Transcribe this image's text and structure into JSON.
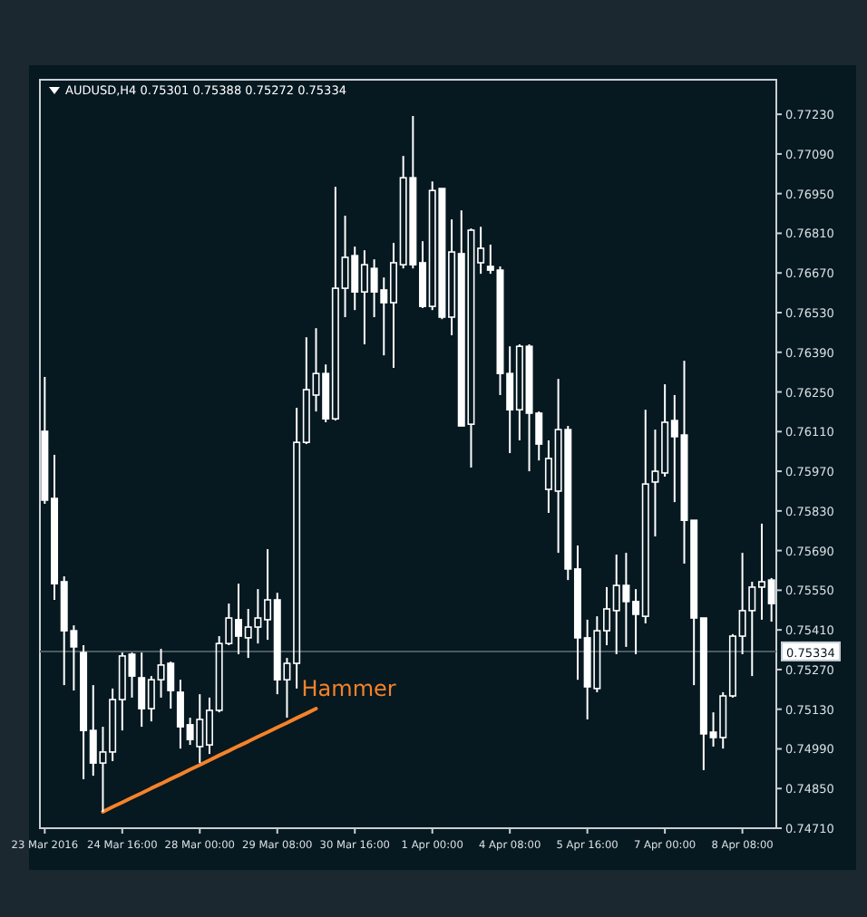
{
  "chart_data": {
    "type": "candlestick",
    "title": "AUDUSD,H4 0.75301 0.75388 0.75272 0.75334",
    "categories": [
      "23 Mar 2016",
      null,
      null,
      null,
      null,
      null,
      null,
      null,
      "24 Mar 16:00",
      null,
      null,
      null,
      null,
      null,
      null,
      null,
      "28 Mar 00:00",
      null,
      null,
      null,
      null,
      null,
      null,
      null,
      "29 Mar 08:00",
      null,
      null,
      null,
      null,
      null,
      null,
      null,
      "30 Mar 16:00",
      null,
      null,
      null,
      null,
      null,
      null,
      null,
      "1 Apr 00:00",
      null,
      null,
      null,
      null,
      null,
      null,
      null,
      "4 Apr 08:00",
      null,
      null,
      null,
      null,
      null,
      null,
      null,
      "5 Apr 16:00",
      null,
      null,
      null,
      null,
      null,
      null,
      null,
      "7 Apr 00:00",
      null,
      null,
      null,
      null,
      null,
      null,
      null,
      "8 Apr 08:00",
      null,
      null,
      null
    ],
    "ohlc": [
      [
        0.76111,
        0.76303,
        0.75855,
        0.75868
      ],
      [
        0.75874,
        0.76028,
        0.75516,
        0.75573
      ],
      [
        0.7558,
        0.75599,
        0.75215,
        0.75407
      ],
      [
        0.75407,
        0.75426,
        0.75196,
        0.7535
      ],
      [
        0.7533,
        0.75356,
        0.74883,
        0.75055
      ],
      [
        0.75055,
        0.75215,
        0.74895,
        0.7494
      ],
      [
        0.7494,
        0.75068,
        0.74768,
        0.74979
      ],
      [
        0.74979,
        0.75203,
        0.74947,
        0.75164
      ],
      [
        0.75164,
        0.7533,
        0.75055,
        0.75318
      ],
      [
        0.75324,
        0.7533,
        0.75171,
        0.75247
      ],
      [
        0.75241,
        0.7533,
        0.75068,
        0.75132
      ],
      [
        0.75132,
        0.75247,
        0.75087,
        0.75234
      ],
      [
        0.75234,
        0.75343,
        0.75171,
        0.75286
      ],
      [
        0.75292,
        0.75298,
        0.75132,
        0.75196
      ],
      [
        0.7519,
        0.75234,
        0.74991,
        0.75068
      ],
      [
        0.75075,
        0.751,
        0.75004,
        0.75023
      ],
      [
        0.74998,
        0.75183,
        0.7494,
        0.75094
      ],
      [
        0.75004,
        0.75171,
        0.74972,
        0.75126
      ],
      [
        0.75126,
        0.75388,
        0.75119,
        0.75362
      ],
      [
        0.75362,
        0.75503,
        0.75356,
        0.75452
      ],
      [
        0.75446,
        0.75573,
        0.75324,
        0.75388
      ],
      [
        0.75382,
        0.75484,
        0.75311,
        0.7542
      ],
      [
        0.7542,
        0.75554,
        0.75362,
        0.75452
      ],
      [
        0.75446,
        0.75695,
        0.75375,
        0.75516
      ],
      [
        0.75516,
        0.75541,
        0.75183,
        0.75234
      ],
      [
        0.75234,
        0.75311,
        0.751,
        0.75292
      ],
      [
        0.75292,
        0.76194,
        0.75203,
        0.76072
      ],
      [
        0.76072,
        0.76443,
        0.76066,
        0.76258
      ],
      [
        0.76239,
        0.76475,
        0.76181,
        0.76315
      ],
      [
        0.76315,
        0.76347,
        0.76143,
        0.76155
      ],
      [
        0.76155,
        0.76974,
        0.76149,
        0.76616
      ],
      [
        0.76616,
        0.76872,
        0.76514,
        0.76725
      ],
      [
        0.76731,
        0.76763,
        0.76539,
        0.76603
      ],
      [
        0.76603,
        0.7675,
        0.76418,
        0.76699
      ],
      [
        0.76686,
        0.76718,
        0.76514,
        0.76603
      ],
      [
        0.7661,
        0.76654,
        0.76379,
        0.76565
      ],
      [
        0.76565,
        0.76776,
        0.76335,
        0.76706
      ],
      [
        0.76699,
        0.77083,
        0.76686,
        0.77006
      ],
      [
        0.77006,
        0.77224,
        0.76686,
        0.76699
      ],
      [
        0.76706,
        0.76782,
        0.76546,
        0.76552
      ],
      [
        0.76552,
        0.76993,
        0.76539,
        0.76961
      ],
      [
        0.76968,
        0.76968,
        0.76507,
        0.76514
      ],
      [
        0.76514,
        0.76859,
        0.7645,
        0.76744
      ],
      [
        0.76738,
        0.76891,
        0.7613,
        0.7613
      ],
      [
        0.76136,
        0.76827,
        0.75983,
        0.76821
      ],
      [
        0.76706,
        0.76833,
        0.76667,
        0.76757
      ],
      [
        0.76693,
        0.7677,
        0.76667,
        0.7668
      ],
      [
        0.7668,
        0.76693,
        0.76239,
        0.76315
      ],
      [
        0.76315,
        0.76411,
        0.76034,
        0.76187
      ],
      [
        0.76187,
        0.76418,
        0.76079,
        0.76411
      ],
      [
        0.76411,
        0.76418,
        0.7597,
        0.76175
      ],
      [
        0.76175,
        0.76181,
        0.76008,
        0.76066
      ],
      [
        0.75906,
        0.76079,
        0.75823,
        0.76015
      ],
      [
        0.759,
        0.76296,
        0.75682,
        0.76117
      ],
      [
        0.76117,
        0.7613,
        0.75586,
        0.75625
      ],
      [
        0.75625,
        0.75708,
        0.75234,
        0.75382
      ],
      [
        0.75382,
        0.75446,
        0.75094,
        0.75209
      ],
      [
        0.75203,
        0.75458,
        0.7519,
        0.75407
      ],
      [
        0.75407,
        0.75561,
        0.75356,
        0.75484
      ],
      [
        0.75478,
        0.75676,
        0.75324,
        0.75567
      ],
      [
        0.75567,
        0.75682,
        0.7535,
        0.7551
      ],
      [
        0.7551,
        0.75554,
        0.75324,
        0.75465
      ],
      [
        0.75458,
        0.76187,
        0.75433,
        0.75925
      ],
      [
        0.75932,
        0.76117,
        0.7574,
        0.7597
      ],
      [
        0.75964,
        0.76277,
        0.75951,
        0.76143
      ],
      [
        0.76149,
        0.76239,
        0.75861,
        0.76092
      ],
      [
        0.76098,
        0.7636,
        0.75644,
        0.75797
      ],
      [
        0.75797,
        0.75797,
        0.75215,
        0.75452
      ],
      [
        0.75452,
        0.75452,
        0.74915,
        0.75043
      ],
      [
        0.75049,
        0.75119,
        0.74998,
        0.7503
      ],
      [
        0.7503,
        0.7519,
        0.74991,
        0.75177
      ],
      [
        0.75177,
        0.75395,
        0.75171,
        0.75388
      ],
      [
        0.75388,
        0.75682,
        0.75324,
        0.75478
      ],
      [
        0.75478,
        0.7558,
        0.75247,
        0.75561
      ],
      [
        0.75561,
        0.75785,
        0.75446,
        0.7558
      ],
      [
        0.75586,
        0.75593,
        0.75439,
        0.75503
      ]
    ],
    "color": "#ffffff",
    "series": [
      {
        "type": "line",
        "color": "#f5822a",
        "values": [
          null,
          null,
          null,
          null,
          null,
          null,
          0.74768,
          0.74785,
          0.74801,
          0.74818,
          0.74834,
          0.74851,
          0.74867,
          0.74884,
          0.749,
          0.74917,
          0.74933,
          0.7495,
          0.74967,
          0.74983,
          0.75,
          0.75016,
          0.75033,
          0.75049,
          0.75066,
          0.75082,
          0.75099,
          0.75115,
          0.75132,
          null,
          null,
          null,
          null,
          null,
          null,
          null,
          null,
          null,
          null,
          null,
          null,
          null,
          null,
          null,
          null,
          null,
          null,
          null,
          null,
          null,
          null,
          null,
          null,
          null,
          null,
          null,
          null,
          null,
          null,
          null,
          null,
          null,
          null,
          null,
          null,
          null,
          null,
          null,
          null,
          null,
          null,
          null,
          null,
          null,
          null,
          null
        ]
      }
    ],
    "ylim": [
      0.7471,
      0.77352
    ],
    "yticks": [
      {
        "value": 0.7723,
        "label": "0.77230"
      },
      {
        "value": 0.7709,
        "label": "0.77090"
      },
      {
        "value": 0.7695,
        "label": "0.76950"
      },
      {
        "value": 0.7681,
        "label": "0.76810"
      },
      {
        "value": 0.7667,
        "label": "0.76670"
      },
      {
        "value": 0.7653,
        "label": "0.76530"
      },
      {
        "value": 0.7639,
        "label": "0.76390"
      },
      {
        "value": 0.7625,
        "label": "0.76250"
      },
      {
        "value": 0.7611,
        "label": "0.76110"
      },
      {
        "value": 0.7597,
        "label": "0.75970"
      },
      {
        "value": 0.7583,
        "label": "0.75830"
      },
      {
        "value": 0.7569,
        "label": "0.75690"
      },
      {
        "value": 0.7555,
        "label": "0.75550"
      },
      {
        "value": 0.7541,
        "label": "0.75410"
      },
      {
        "value": 0.7527,
        "label": "0.75270"
      },
      {
        "value": 0.7513,
        "label": "0.75130"
      },
      {
        "value": 0.7499,
        "label": "0.74990"
      },
      {
        "value": 0.7485,
        "label": "0.74850"
      },
      {
        "value": 0.7471,
        "label": "0.74710"
      }
    ],
    "ref_lines": [
      {
        "axis": "y",
        "value": 0.75334,
        "label": "0.75334",
        "color": "#4a5a60"
      }
    ],
    "annotations": [
      "Hammer"
    ],
    "grid": false
  }
}
